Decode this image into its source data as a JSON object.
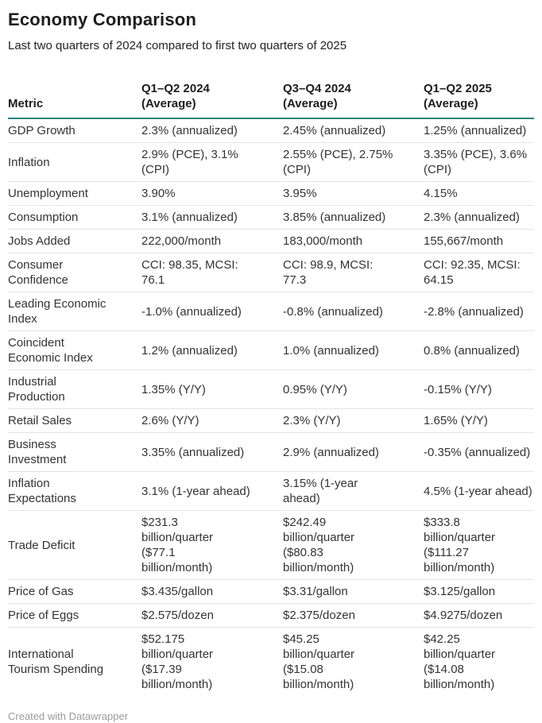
{
  "page": {
    "title": "Economy Comparison",
    "subtitle": "Last two quarters of 2024 compared to first two quarters of 2025",
    "footer_credit": "Created with Datawrapper"
  },
  "colors": {
    "header_rule": "#2a837b",
    "row_divider": "#e4e4e4",
    "body_text": "#333333",
    "title_text": "#1d1d1d",
    "footer_text": "#9a9a9a"
  },
  "table": {
    "columns": [
      {
        "label": "Metric"
      },
      {
        "label": "Q1–Q2 2024\n(Average)"
      },
      {
        "label": "Q3–Q4 2024\n(Average)"
      },
      {
        "label": "Q1–Q2 2025\n(Average)"
      }
    ],
    "rows": [
      {
        "metric": "GDP Growth",
        "values": [
          "2.3% (annualized)",
          "2.45% (annualized)",
          "1.25% (annualized)"
        ]
      },
      {
        "metric": "Inflation",
        "values": [
          "2.9% (PCE), 3.1%\n(CPI)",
          "2.55% (PCE), 2.75%\n(CPI)",
          "3.35% (PCE), 3.6%\n(CPI)"
        ]
      },
      {
        "metric": "Unemployment",
        "values": [
          "3.90%",
          "3.95%",
          "4.15%"
        ]
      },
      {
        "metric": "Consumption",
        "values": [
          "3.1% (annualized)",
          "3.85% (annualized)",
          "2.3% (annualized)"
        ]
      },
      {
        "metric": "Jobs Added",
        "values": [
          "222,000/month",
          "183,000/month",
          "155,667/month"
        ]
      },
      {
        "metric": "Consumer\nConfidence",
        "values": [
          "CCI: 98.35, MCSI:\n76.1",
          "CCI: 98.9, MCSI:\n77.3",
          "CCI: 92.35, MCSI:\n64.15"
        ]
      },
      {
        "metric": "Leading Economic\nIndex",
        "values": [
          "-1.0% (annualized)",
          "-0.8% (annualized)",
          "-2.8% (annualized)"
        ]
      },
      {
        "metric": "Coincident\nEconomic Index",
        "values": [
          "1.2% (annualized)",
          "1.0% (annualized)",
          "0.8% (annualized)"
        ]
      },
      {
        "metric": "Industrial\nProduction",
        "values": [
          "1.35% (Y/Y)",
          "0.95% (Y/Y)",
          "-0.15% (Y/Y)"
        ]
      },
      {
        "metric": "Retail Sales",
        "values": [
          "2.6% (Y/Y)",
          "2.3% (Y/Y)",
          "1.65% (Y/Y)"
        ]
      },
      {
        "metric": "Business\nInvestment",
        "values": [
          "3.35% (annualized)",
          "2.9% (annualized)",
          "-0.35% (annualized)"
        ]
      },
      {
        "metric": "Inflation\nExpectations",
        "values": [
          "3.1% (1-year ahead)",
          "3.15% (1-year\nahead)",
          "4.5% (1-year ahead)"
        ]
      },
      {
        "metric": "Trade Deficit",
        "values": [
          "$231.3\nbillion/quarter\n($77.1\nbillion/month)",
          "$242.49\nbillion/quarter\n($80.83\nbillion/month)",
          "$333.8\nbillion/quarter\n($111.27\nbillion/month)"
        ]
      },
      {
        "metric": "Price of Gas",
        "values": [
          "$3.435/gallon",
          "$3.31/gallon",
          "$3.125/gallon"
        ]
      },
      {
        "metric": "Price of Eggs",
        "values": [
          "$2.575/dozen",
          "$2.375/dozen",
          "$4.9275/dozen"
        ]
      },
      {
        "metric": "International\nTourism Spending",
        "values": [
          "$52.175\nbillion/quarter\n($17.39\nbillion/month)",
          "$45.25\nbillion/quarter\n($15.08\nbillion/month)",
          "$42.25\nbillion/quarter\n($14.08\nbillion/month)"
        ]
      }
    ]
  },
  "chart_data": {
    "type": "table",
    "title": "Economy Comparison",
    "subtitle": "Last two quarters of 2024 compared to first two quarters of 2025",
    "columns": [
      "Metric",
      "Q1–Q2 2024 (Average)",
      "Q3–Q4 2024 (Average)",
      "Q1–Q2 2025 (Average)"
    ],
    "rows": [
      [
        "GDP Growth",
        "2.3% (annualized)",
        "2.45% (annualized)",
        "1.25% (annualized)"
      ],
      [
        "Inflation",
        "2.9% (PCE), 3.1% (CPI)",
        "2.55% (PCE), 2.75% (CPI)",
        "3.35% (PCE), 3.6% (CPI)"
      ],
      [
        "Unemployment",
        "3.90%",
        "3.95%",
        "4.15%"
      ],
      [
        "Consumption",
        "3.1% (annualized)",
        "3.85% (annualized)",
        "2.3% (annualized)"
      ],
      [
        "Jobs Added",
        "222,000/month",
        "183,000/month",
        "155,667/month"
      ],
      [
        "Consumer Confidence",
        "CCI: 98.35, MCSI: 76.1",
        "CCI: 98.9, MCSI: 77.3",
        "CCI: 92.35, MCSI: 64.15"
      ],
      [
        "Leading Economic Index",
        "-1.0% (annualized)",
        "-0.8% (annualized)",
        "-2.8% (annualized)"
      ],
      [
        "Coincident Economic Index",
        "1.2% (annualized)",
        "1.0% (annualized)",
        "0.8% (annualized)"
      ],
      [
        "Industrial Production",
        "1.35% (Y/Y)",
        "0.95% (Y/Y)",
        "-0.15% (Y/Y)"
      ],
      [
        "Retail Sales",
        "2.6% (Y/Y)",
        "2.3% (Y/Y)",
        "1.65% (Y/Y)"
      ],
      [
        "Business Investment",
        "3.35% (annualized)",
        "2.9% (annualized)",
        "-0.35% (annualized)"
      ],
      [
        "Inflation Expectations",
        "3.1% (1-year ahead)",
        "3.15% (1-year ahead)",
        "4.5% (1-year ahead)"
      ],
      [
        "Trade Deficit",
        "$231.3 billion/quarter ($77.1 billion/month)",
        "$242.49 billion/quarter ($80.83 billion/month)",
        "$333.8 billion/quarter ($111.27 billion/month)"
      ],
      [
        "Price of Gas",
        "$3.435/gallon",
        "$3.31/gallon",
        "$3.125/gallon"
      ],
      [
        "Price of Eggs",
        "$2.575/dozen",
        "$2.375/dozen",
        "$4.9275/dozen"
      ],
      [
        "International Tourism Spending",
        "$52.175 billion/quarter ($17.39 billion/month)",
        "$45.25 billion/quarter ($15.08 billion/month)",
        "$42.25 billion/quarter ($14.08 billion/month)"
      ]
    ],
    "legend_position": "none",
    "grid": "horizontal-row-dividers"
  }
}
